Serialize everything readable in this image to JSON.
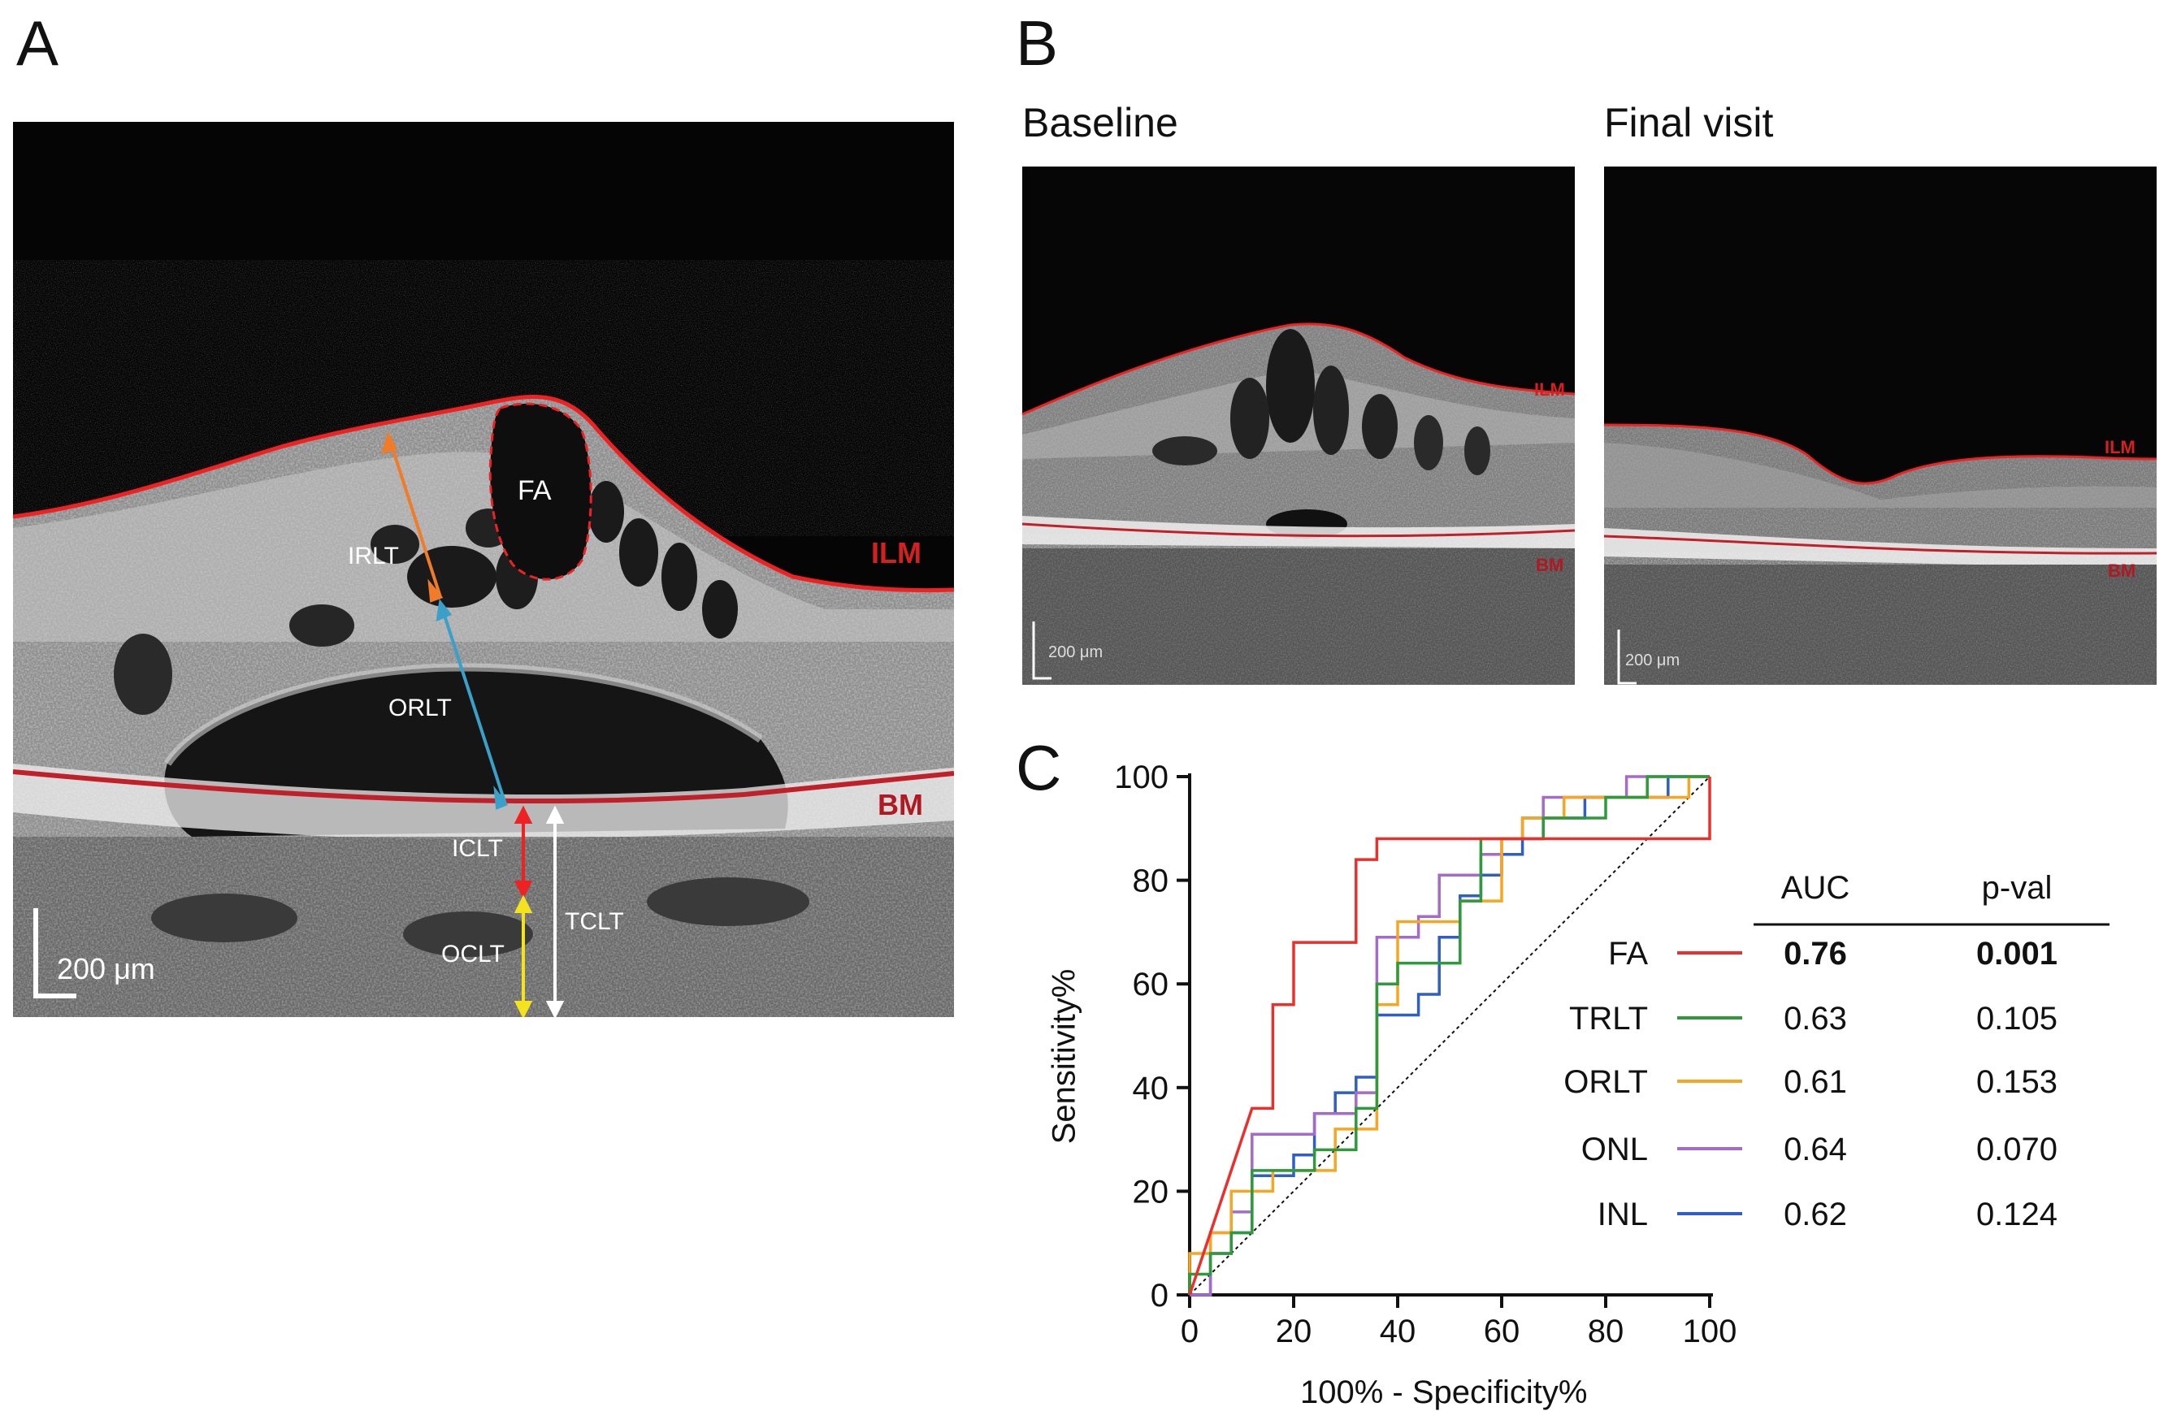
{
  "panels": {
    "a": {
      "letter": "A",
      "labels": {
        "fa": "FA",
        "irlt": "IRLT",
        "orlt": "ORLT",
        "iclt": "ICLT",
        "oclt": "OCLT",
        "tclt": "TCLT",
        "ilm": "ILM",
        "bm": "BM",
        "scale": "200 μm"
      }
    },
    "b": {
      "letter": "B",
      "baseline_title": "Baseline",
      "final_title": "Final visit",
      "ilm": "ILM",
      "bm": "BM",
      "scale": "200 μm"
    },
    "c": {
      "letter": "C"
    }
  },
  "colors": {
    "FA": "#e8312c",
    "TRLT": "#2e9a3a",
    "ORLT": "#f5a623",
    "ONL": "#a46bc9",
    "INL": "#2f5fc4",
    "reference": "#111111"
  },
  "chart_data": {
    "type": "line",
    "title": "",
    "xlabel": "100% - Specificity%",
    "ylabel": "Sensitivity%",
    "xlim": [
      0,
      100
    ],
    "ylim": [
      0,
      100
    ],
    "xticks": [
      "0",
      "20",
      "40",
      "60",
      "80",
      "100"
    ],
    "yticks": [
      "0",
      "20",
      "40",
      "60",
      "80",
      "100"
    ],
    "reference_line": [
      [
        0,
        0
      ],
      [
        100,
        100
      ]
    ],
    "table_headers": {
      "auc": "AUC",
      "pval": "p-val"
    },
    "series": [
      {
        "name": "FA",
        "auc": "0.76",
        "pval": "0.001",
        "bold": true,
        "points": [
          [
            0,
            0
          ],
          [
            12,
            36
          ],
          [
            16,
            36
          ],
          [
            16,
            56
          ],
          [
            20,
            56
          ],
          [
            20,
            68
          ],
          [
            32,
            68
          ],
          [
            32,
            84
          ],
          [
            36,
            84
          ],
          [
            36,
            88
          ],
          [
            100,
            88
          ],
          [
            100,
            100
          ]
        ]
      },
      {
        "name": "TRLT",
        "auc": "0.63",
        "pval": "0.105",
        "points": [
          [
            0,
            0
          ],
          [
            0,
            4
          ],
          [
            4,
            4
          ],
          [
            4,
            8
          ],
          [
            8,
            8
          ],
          [
            8,
            12
          ],
          [
            12,
            12
          ],
          [
            12,
            24
          ],
          [
            24,
            24
          ],
          [
            24,
            28
          ],
          [
            32,
            28
          ],
          [
            32,
            36
          ],
          [
            36,
            36
          ],
          [
            36,
            60
          ],
          [
            40,
            60
          ],
          [
            40,
            64
          ],
          [
            52,
            64
          ],
          [
            52,
            76
          ],
          [
            56,
            76
          ],
          [
            56,
            88
          ],
          [
            68,
            88
          ],
          [
            68,
            92
          ],
          [
            80,
            92
          ],
          [
            80,
            96
          ],
          [
            88,
            96
          ],
          [
            88,
            100
          ],
          [
            100,
            100
          ]
        ]
      },
      {
        "name": "ORLT",
        "auc": "0.61",
        "pval": "0.153",
        "points": [
          [
            0,
            0
          ],
          [
            0,
            8
          ],
          [
            4,
            8
          ],
          [
            4,
            12
          ],
          [
            8,
            12
          ],
          [
            8,
            20
          ],
          [
            16,
            20
          ],
          [
            16,
            24
          ],
          [
            28,
            24
          ],
          [
            28,
            32
          ],
          [
            36,
            32
          ],
          [
            36,
            56
          ],
          [
            40,
            56
          ],
          [
            40,
            72
          ],
          [
            52,
            72
          ],
          [
            52,
            76
          ],
          [
            60,
            76
          ],
          [
            60,
            88
          ],
          [
            64,
            88
          ],
          [
            64,
            92
          ],
          [
            72,
            92
          ],
          [
            72,
            96
          ],
          [
            96,
            96
          ],
          [
            96,
            100
          ],
          [
            100,
            100
          ]
        ]
      },
      {
        "name": "ONL",
        "auc": "0.64",
        "pval": "0.070",
        "points": [
          [
            0,
            0
          ],
          [
            4,
            0
          ],
          [
            4,
            12
          ],
          [
            8,
            12
          ],
          [
            8,
            16
          ],
          [
            12,
            16
          ],
          [
            12,
            31
          ],
          [
            24,
            31
          ],
          [
            24,
            35
          ],
          [
            32,
            35
          ],
          [
            32,
            39
          ],
          [
            36,
            39
          ],
          [
            36,
            69
          ],
          [
            44,
            69
          ],
          [
            44,
            73
          ],
          [
            48,
            73
          ],
          [
            48,
            81
          ],
          [
            56,
            81
          ],
          [
            56,
            85
          ],
          [
            60,
            85
          ],
          [
            60,
            88
          ],
          [
            68,
            88
          ],
          [
            68,
            96
          ],
          [
            84,
            96
          ],
          [
            84,
            100
          ],
          [
            100,
            100
          ]
        ]
      },
      {
        "name": "INL",
        "auc": "0.62",
        "pval": "0.124",
        "points": [
          [
            0,
            0
          ],
          [
            4,
            0
          ],
          [
            4,
            8
          ],
          [
            8,
            8
          ],
          [
            8,
            12
          ],
          [
            12,
            12
          ],
          [
            12,
            23
          ],
          [
            20,
            23
          ],
          [
            20,
            27
          ],
          [
            24,
            27
          ],
          [
            24,
            35
          ],
          [
            28,
            35
          ],
          [
            28,
            39
          ],
          [
            32,
            39
          ],
          [
            32,
            42
          ],
          [
            36,
            42
          ],
          [
            36,
            54
          ],
          [
            44,
            54
          ],
          [
            44,
            58
          ],
          [
            48,
            58
          ],
          [
            48,
            69
          ],
          [
            52,
            69
          ],
          [
            52,
            77
          ],
          [
            56,
            77
          ],
          [
            56,
            81
          ],
          [
            60,
            81
          ],
          [
            60,
            85
          ],
          [
            64,
            85
          ],
          [
            64,
            92
          ],
          [
            76,
            92
          ],
          [
            76,
            96
          ],
          [
            92,
            96
          ],
          [
            92,
            100
          ],
          [
            100,
            100
          ]
        ]
      }
    ]
  }
}
